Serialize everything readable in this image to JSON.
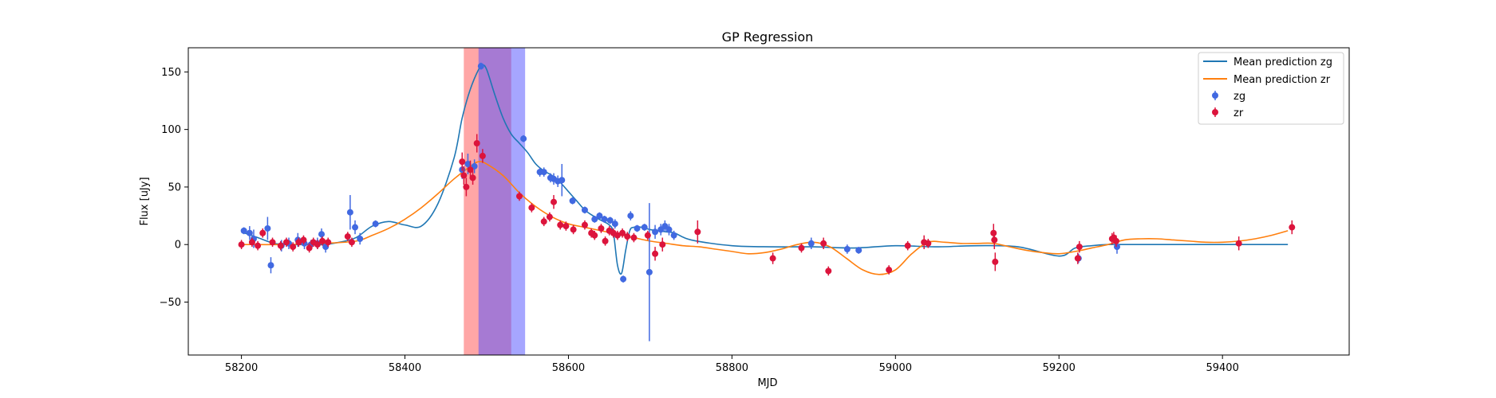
{
  "chart_data": {
    "type": "scatter",
    "title": "GP Regression",
    "xlabel": "MJD",
    "ylabel": "Flux [uJy]",
    "xlim": [
      58135,
      59555
    ],
    "ylim": [
      -96,
      171
    ],
    "xticks": [
      58200,
      58400,
      58600,
      58800,
      59000,
      59200,
      59400
    ],
    "yticks": [
      -50,
      0,
      50,
      100,
      150
    ],
    "grid": false,
    "legend_position": "top-right",
    "spans": [
      {
        "x0": 58472,
        "x1": 58530,
        "color": "#ff4d4d",
        "opacity": 0.5
      },
      {
        "x0": 58490,
        "x1": 58547,
        "color": "#4d4dff",
        "opacity": 0.5
      }
    ],
    "series": [
      {
        "name": "Mean prediction zg",
        "kind": "line",
        "color": "#1f77b4",
        "x": [
          58200,
          58220,
          58240,
          58260,
          58280,
          58300,
          58320,
          58340,
          58360,
          58380,
          58400,
          58420,
          58440,
          58460,
          58470,
          58480,
          58490,
          58495,
          58500,
          58510,
          58520,
          58530,
          58540,
          58550,
          58560,
          58570,
          58580,
          58590,
          58600,
          58610,
          58620,
          58630,
          58640,
          58650,
          58655,
          58660,
          58665,
          58670,
          58675,
          58680,
          58690,
          58700,
          58710,
          58720,
          58730,
          58750,
          58800,
          58850,
          58900,
          58950,
          59000,
          59050,
          59100,
          59150,
          59200,
          59220,
          59240,
          59260,
          59280,
          59300,
          59400,
          59480
        ],
        "y": [
          11,
          6,
          1,
          0,
          0,
          0,
          2,
          6,
          16,
          20,
          17,
          16,
          35,
          75,
          110,
          135,
          152,
          156,
          152,
          130,
          110,
          96,
          88,
          80,
          70,
          64,
          60,
          54,
          46,
          38,
          30,
          25,
          21,
          17,
          10,
          -18,
          -25,
          -5,
          12,
          15,
          15,
          13,
          12,
          11,
          10,
          4,
          -1,
          -2,
          -2,
          -3,
          -1,
          -2,
          -1,
          -2,
          -10,
          -3,
          -1,
          0,
          0,
          0,
          0,
          0
        ]
      },
      {
        "name": "Mean prediction zr",
        "kind": "line",
        "color": "#ff7f0e",
        "x": [
          58200,
          58250,
          58300,
          58340,
          58360,
          58380,
          58400,
          58420,
          58440,
          58460,
          58480,
          58490,
          58500,
          58520,
          58540,
          58560,
          58580,
          58600,
          58620,
          58640,
          58660,
          58680,
          58700,
          58720,
          58740,
          58760,
          58780,
          58800,
          58820,
          58840,
          58860,
          58880,
          58900,
          58920,
          58940,
          58960,
          58980,
          59000,
          59020,
          59040,
          59060,
          59080,
          59100,
          59120,
          59140,
          59160,
          59180,
          59200,
          59220,
          59240,
          59260,
          59280,
          59300,
          59320,
          59340,
          59360,
          59380,
          59400,
          59420,
          59440,
          59460,
          59480
        ],
        "y": [
          0,
          0,
          1,
          3,
          8,
          14,
          22,
          32,
          44,
          57,
          68,
          72,
          70,
          60,
          45,
          33,
          24,
          18,
          15,
          12,
          9,
          6,
          3,
          1,
          -1,
          -2,
          -4,
          -6,
          -8,
          -7,
          -4,
          0,
          2,
          -2,
          -12,
          -22,
          -26,
          -22,
          -8,
          2,
          2,
          1,
          1,
          1,
          -2,
          -5,
          -7,
          -8,
          -6,
          -3,
          0,
          4,
          5,
          5,
          4,
          3,
          2,
          2,
          3,
          5,
          8,
          12
        ]
      },
      {
        "name": "zg",
        "kind": "points",
        "color": "#4169e1",
        "x": [
          58203,
          58210,
          58215,
          58232,
          58236,
          58249,
          58258,
          58269,
          58277,
          58285,
          58293,
          58298,
          58303,
          58333,
          58339,
          58345,
          58364,
          58470,
          58477,
          58485,
          58493,
          58545,
          58565,
          58570,
          58578,
          58582,
          58587,
          58592,
          58605,
          58620,
          58632,
          58638,
          58644,
          58651,
          58657,
          58667,
          58676,
          58684,
          58693,
          58699,
          58706,
          58713,
          58718,
          58723,
          58729,
          58897,
          58941,
          58955,
          59224,
          59271
        ],
        "y": [
          12,
          10,
          5,
          14,
          -18,
          -1,
          1,
          4,
          1,
          0,
          1,
          9,
          -2,
          28,
          15,
          5,
          18,
          65,
          70,
          68,
          155,
          92,
          63,
          63,
          58,
          57,
          55,
          56,
          38,
          30,
          22,
          25,
          22,
          21,
          18,
          -30,
          25,
          14,
          15,
          -24,
          11,
          13,
          16,
          13,
          8,
          1,
          -4,
          -5,
          -12,
          -2
        ],
        "err": [
          3,
          6,
          8,
          10,
          7,
          5,
          5,
          6,
          5,
          4,
          5,
          5,
          5,
          15,
          6,
          5,
          3,
          8,
          9,
          6,
          3,
          3,
          4,
          4,
          4,
          5,
          5,
          14,
          3,
          3,
          3,
          3,
          3,
          3,
          4,
          3,
          4,
          3,
          3,
          60,
          6,
          5,
          5,
          5,
          4,
          5,
          4,
          3,
          4,
          6
        ]
      },
      {
        "name": "zr",
        "kind": "points",
        "color": "#dc143c",
        "x": [
          58200,
          58213,
          58220,
          58226,
          58238,
          58248,
          58255,
          58263,
          58270,
          58276,
          58283,
          58288,
          58293,
          58299,
          58306,
          58330,
          58335,
          58470,
          58472,
          58475,
          58480,
          58483,
          58488,
          58495,
          58540,
          58555,
          58570,
          58577,
          58582,
          58590,
          58597,
          58606,
          58620,
          58628,
          58632,
          58640,
          58645,
          58650,
          58655,
          58660,
          58666,
          58672,
          58680,
          58697,
          58706,
          58715,
          58758,
          58850,
          58885,
          58912,
          58918,
          58992,
          59015,
          59035,
          59040,
          59120,
          59121,
          59122,
          59223,
          59225,
          59265,
          59267,
          59270,
          59420,
          59485
        ],
        "y": [
          0,
          2,
          -1,
          10,
          2,
          -1,
          2,
          -2,
          2,
          4,
          -3,
          2,
          0,
          3,
          2,
          7,
          2,
          72,
          60,
          50,
          65,
          58,
          88,
          77,
          42,
          32,
          20,
          24,
          37,
          17,
          16,
          13,
          17,
          10,
          8,
          14,
          3,
          12,
          10,
          8,
          10,
          7,
          6,
          8,
          -8,
          0,
          11,
          -12,
          -3,
          1,
          -23,
          -22,
          -1,
          2,
          1,
          10,
          4,
          -15,
          -12,
          -2,
          5,
          6,
          3,
          1,
          15
        ],
        "err": [
          4,
          4,
          4,
          4,
          4,
          4,
          4,
          4,
          4,
          4,
          4,
          4,
          4,
          4,
          4,
          4,
          4,
          8,
          8,
          8,
          8,
          6,
          8,
          6,
          4,
          4,
          4,
          4,
          6,
          4,
          4,
          4,
          4,
          4,
          4,
          4,
          4,
          4,
          4,
          4,
          4,
          4,
          4,
          4,
          6,
          6,
          10,
          5,
          4,
          5,
          4,
          4,
          4,
          6,
          4,
          8,
          8,
          8,
          5,
          5,
          5,
          5,
          5,
          6,
          6
        ]
      }
    ]
  }
}
